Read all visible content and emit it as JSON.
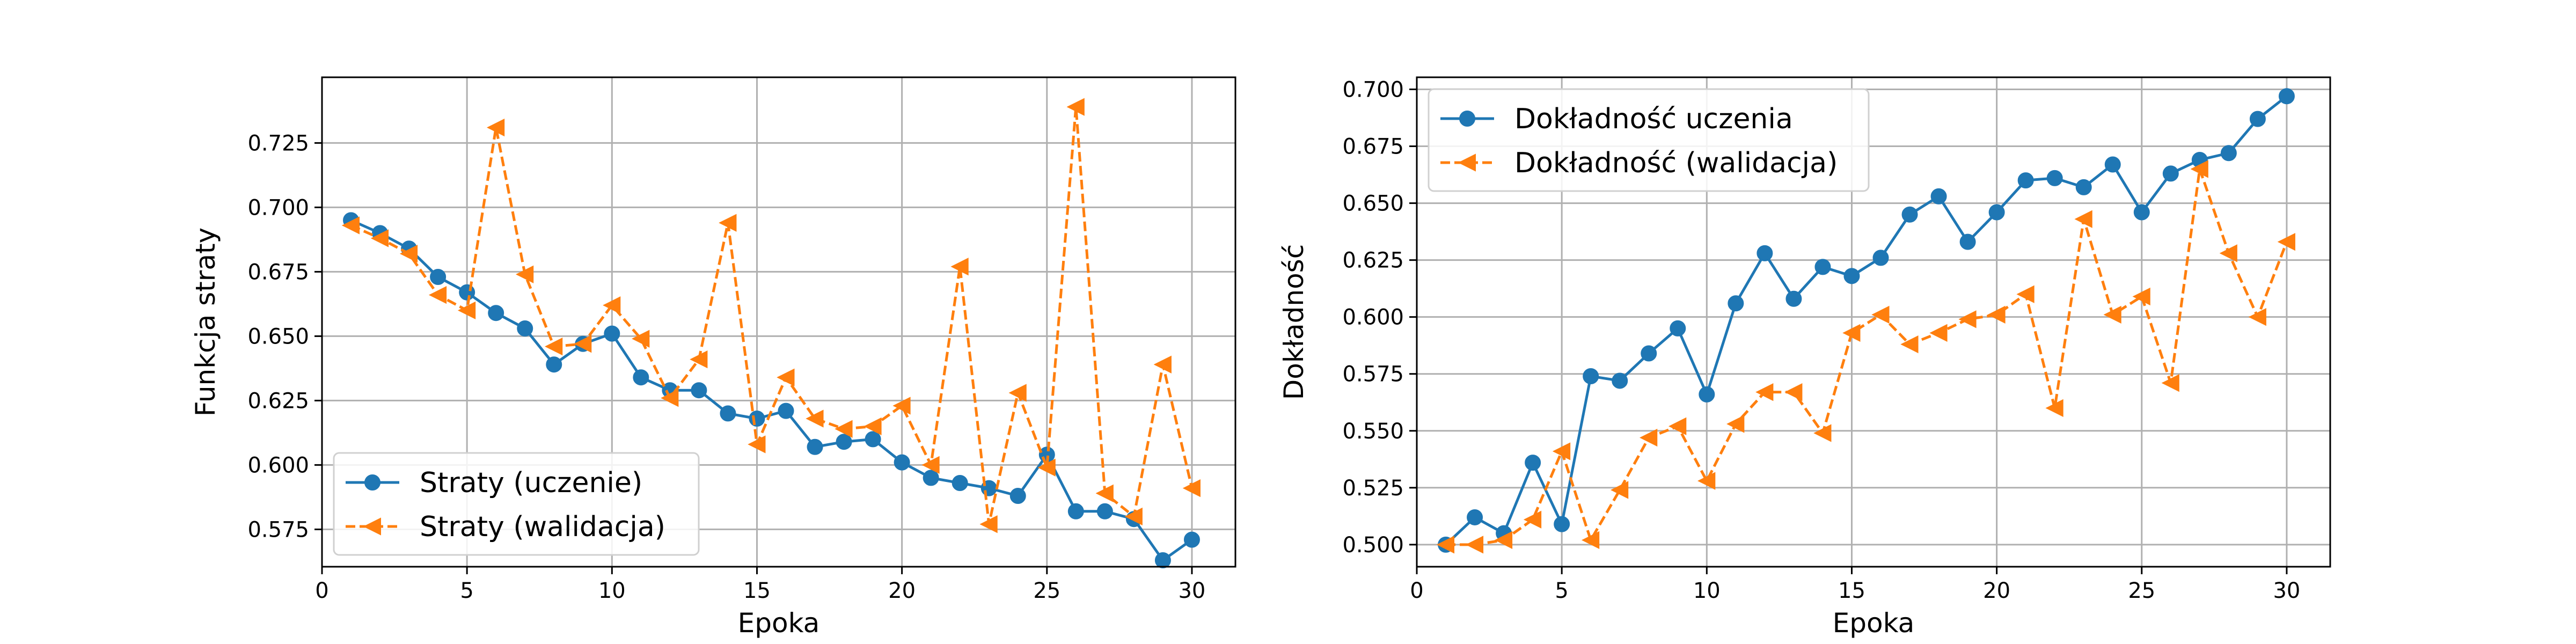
{
  "chart_data": [
    {
      "type": "line",
      "title": "",
      "xlabel": "Epoka",
      "ylabel": "Funkcja straty",
      "xlim": [
        0,
        31.5
      ],
      "ylim": [
        0.5605,
        0.7505
      ],
      "xticks": [
        0,
        5,
        10,
        15,
        20,
        25,
        30
      ],
      "yticks": [
        0.575,
        0.6,
        0.625,
        0.65,
        0.675,
        0.7,
        0.725
      ],
      "grid": true,
      "legend_position": "lower-left",
      "x": [
        1,
        2,
        3,
        4,
        5,
        6,
        7,
        8,
        9,
        10,
        11,
        12,
        13,
        14,
        15,
        16,
        17,
        18,
        19,
        20,
        21,
        22,
        23,
        24,
        25,
        26,
        27,
        28,
        29,
        30
      ],
      "series": [
        {
          "name": "Straty (uczenie)",
          "color": "#1f77b4",
          "style": "solid",
          "marker": "circle",
          "values": [
            0.695,
            0.69,
            0.684,
            0.673,
            0.667,
            0.659,
            0.653,
            0.639,
            0.647,
            0.651,
            0.634,
            0.629,
            0.629,
            0.62,
            0.618,
            0.621,
            0.607,
            0.609,
            0.61,
            0.601,
            0.595,
            0.593,
            0.591,
            0.588,
            0.604,
            0.582,
            0.582,
            0.579,
            0.563,
            0.571
          ]
        },
        {
          "name": "Straty (walidacja)",
          "color": "#ff7f0e",
          "style": "dashed",
          "marker": "triangle-left",
          "values": [
            0.693,
            0.688,
            0.682,
            0.666,
            0.66,
            0.731,
            0.674,
            0.646,
            0.647,
            0.662,
            0.649,
            0.626,
            0.641,
            0.694,
            0.608,
            0.634,
            0.618,
            0.614,
            0.615,
            0.623,
            0.6,
            0.677,
            0.577,
            0.628,
            0.599,
            0.739,
            0.589,
            0.58,
            0.639,
            0.591
          ]
        }
      ]
    },
    {
      "type": "line",
      "title": "",
      "xlabel": "Epoka",
      "ylabel": "Dokładność",
      "xlim": [
        0,
        31.5
      ],
      "ylim": [
        0.4903,
        0.7053
      ],
      "xticks": [
        0,
        5,
        10,
        15,
        20,
        25,
        30
      ],
      "yticks": [
        0.5,
        0.525,
        0.55,
        0.575,
        0.6,
        0.625,
        0.65,
        0.675,
        0.7
      ],
      "grid": true,
      "legend_position": "upper-left",
      "x": [
        1,
        2,
        3,
        4,
        5,
        6,
        7,
        8,
        9,
        10,
        11,
        12,
        13,
        14,
        15,
        16,
        17,
        18,
        19,
        20,
        21,
        22,
        23,
        24,
        25,
        26,
        27,
        28,
        29,
        30
      ],
      "series": [
        {
          "name": "Dokładność uczenia",
          "color": "#1f77b4",
          "style": "solid",
          "marker": "circle",
          "values": [
            0.5,
            0.512,
            0.505,
            0.536,
            0.509,
            0.574,
            0.572,
            0.584,
            0.595,
            0.566,
            0.606,
            0.628,
            0.608,
            0.622,
            0.618,
            0.626,
            0.645,
            0.653,
            0.633,
            0.646,
            0.66,
            0.661,
            0.657,
            0.667,
            0.646,
            0.663,
            0.669,
            0.672,
            0.687,
            0.697
          ]
        },
        {
          "name": "Dokładność (walidacja)",
          "color": "#ff7f0e",
          "style": "dashed",
          "marker": "triangle-left",
          "values": [
            0.5,
            0.5,
            0.502,
            0.511,
            0.541,
            0.502,
            0.524,
            0.547,
            0.552,
            0.528,
            0.553,
            0.567,
            0.567,
            0.549,
            0.593,
            0.601,
            0.588,
            0.593,
            0.599,
            0.601,
            0.61,
            0.56,
            0.643,
            0.601,
            0.609,
            0.571,
            0.665,
            0.628,
            0.6,
            0.633
          ]
        }
      ]
    }
  ]
}
